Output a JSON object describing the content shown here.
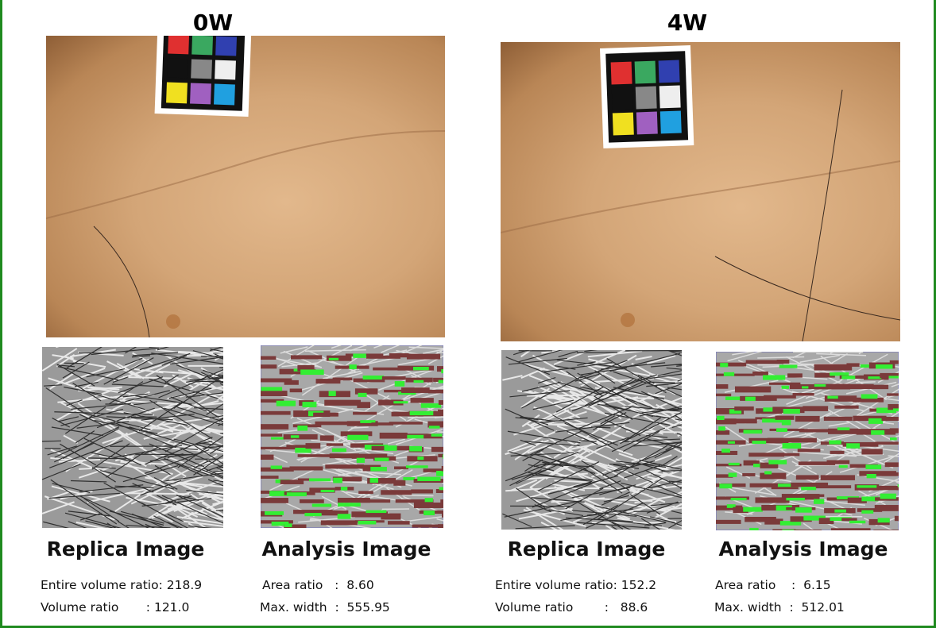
{
  "panels": [
    {
      "title": "0W",
      "replica_label": "Replica Image",
      "analysis_label": "Analysis Image",
      "replica_stats": [
        "Entire volume ratio: 218.9",
        "Volume ratio       : 121.0"
      ],
      "analysis_stats": [
        "Area ratio   :  8.60",
        "Max. width  :  555.95"
      ]
    },
    {
      "title": "4W",
      "replica_label": "Replica Image",
      "analysis_label": "Analysis Image",
      "replica_stats": [
        "Entire volume ratio: 152.2",
        "Volume ratio        :   88.6"
      ],
      "analysis_stats": [
        "Area ratio    :  6.15",
        "Max. width  :  512.01"
      ]
    }
  ]
}
